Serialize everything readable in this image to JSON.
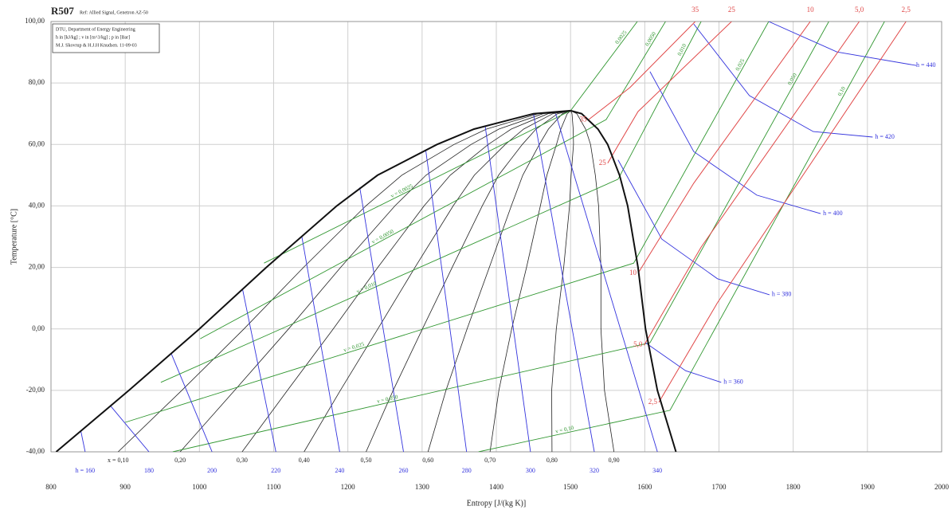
{
  "chart_data": {
    "type": "ts-diagram",
    "title": "R507",
    "subtitle": "Ref: Allied Signal, Genetron AZ-50",
    "info": [
      "DTU, Department of Energy Engineering",
      "h in [kJ/kg] ; v in [m^3/kg] ; p in [Bar]",
      "M.J. Skovrup & H.J.H Knudsen. 11-09-03"
    ],
    "x_label": "Entropy [J/(kg K)]",
    "y_label": "Temperature [°C]",
    "xlim": [
      800,
      2000
    ],
    "xticks": [
      800,
      900,
      1000,
      1100,
      1200,
      1300,
      1400,
      1500,
      1600,
      1700,
      1800,
      1900,
      2000
    ],
    "ylim": [
      -40,
      100
    ],
    "yticks": [
      {
        "value": -40,
        "label": "-40,00"
      },
      {
        "value": -20,
        "label": "-20,00"
      },
      {
        "value": 0,
        "label": "0,00"
      },
      {
        "value": 20,
        "label": "20,00"
      },
      {
        "value": 40,
        "label": "40,00"
      },
      {
        "value": 60,
        "label": "60,00"
      },
      {
        "value": 80,
        "label": "80,00"
      },
      {
        "value": 100,
        "label": "100,00"
      }
    ],
    "grid": true,
    "dome": {
      "color": "#111111",
      "temperatures": [
        -40,
        -20,
        0,
        20,
        40,
        50,
        60,
        65,
        70,
        71
      ],
      "liquid": [
        807,
        905,
        1000,
        1090,
        1185,
        1240,
        1320,
        1370,
        1450,
        1500
      ],
      "vapor": [
        1642,
        1617,
        1601,
        1591,
        1577,
        1566,
        1550,
        1537,
        1515,
        1500
      ]
    },
    "qualities": {
      "color": "#222222",
      "values": [
        {
          "value": 0.1,
          "label": "x = 0,10"
        },
        {
          "value": 0.2,
          "label": "0,20"
        },
        {
          "value": 0.3,
          "label": "0,30"
        },
        {
          "value": 0.4,
          "label": "0,40"
        },
        {
          "value": 0.5,
          "label": "0,50"
        },
        {
          "value": 0.6,
          "label": "0,60"
        },
        {
          "value": 0.7,
          "label": "0,70"
        },
        {
          "value": 0.8,
          "label": "0,80"
        },
        {
          "value": 0.9,
          "label": "0,90"
        }
      ]
    },
    "enthalpy": [
      {
        "name": "h = 160",
        "color": "#3333dd",
        "x": [
          846,
          840
        ],
        "values": [
          -40,
          -33
        ]
      },
      {
        "name": "180",
        "color": "#3333dd",
        "x": [
          932,
          880
        ],
        "values": [
          -40,
          -25
        ]
      },
      {
        "name": "200",
        "color": "#3333dd",
        "x": [
          1017,
          962
        ],
        "values": [
          -40,
          -8
        ]
      },
      {
        "name": "220",
        "color": "#3333dd",
        "x": [
          1103,
          1058
        ],
        "values": [
          -40,
          13
        ]
      },
      {
        "name": "240",
        "color": "#3333dd",
        "x": [
          1189,
          1138
        ],
        "values": [
          -40,
          30
        ]
      },
      {
        "name": "260",
        "color": "#3333dd",
        "x": [
          1275,
          1216
        ],
        "values": [
          -40,
          46
        ]
      },
      {
        "name": "280",
        "color": "#3333dd",
        "x": [
          1360,
          1305
        ],
        "values": [
          -40,
          58
        ]
      },
      {
        "name": "300",
        "color": "#3333dd",
        "x": [
          1446,
          1385
        ],
        "values": [
          -40,
          66
        ]
      },
      {
        "name": "320",
        "color": "#3333dd",
        "x": [
          1532,
          1450
        ],
        "values": [
          -40,
          70
        ]
      },
      {
        "name": "340",
        "color": "#3333dd",
        "x": [
          1617,
          1480
        ],
        "values": [
          -40,
          70
        ]
      },
      {
        "name": "h = 360",
        "color": "#3333dd",
        "x": [
          1601,
          1655,
          1703
        ],
        "values": [
          -4.5,
          -13.6,
          -17.4
        ]
      },
      {
        "name": "h = 380",
        "color": "#3333dd",
        "x": [
          1564,
          1623,
          1698,
          1768
        ],
        "values": [
          55,
          29.2,
          16.3,
          11.1
        ]
      },
      {
        "name": "h = 400",
        "color": "#3333dd",
        "x": [
          1607,
          1666,
          1751,
          1837
        ],
        "values": [
          83.7,
          57.7,
          43.5,
          37.5
        ]
      },
      {
        "name": "h = 420",
        "color": "#3333dd",
        "x": [
          1666,
          1741,
          1827,
          1907
        ],
        "values": [
          99.2,
          75.9,
          64.2,
          62.4
        ]
      },
      {
        "name": "h = 440",
        "color": "#3333dd",
        "x": [
          1767,
          1859,
          1966
        ],
        "values": [
          100,
          90.1,
          85.7
        ]
      }
    ],
    "isobars": [
      {
        "name": "35",
        "color": "#e04848",
        "x": [
          1524,
          1580,
          1668
        ],
        "values": [
          68,
          78.5,
          100
        ]
      },
      {
        "name": "25",
        "color": "#e04848",
        "x": [
          1550,
          1591,
          1717
        ],
        "values": [
          53.9,
          70.7,
          100
        ]
      },
      {
        "name": "10",
        "color": "#e04848",
        "x": [
          1591,
          1666,
          1823
        ],
        "values": [
          18.1,
          47.4,
          100
        ]
      },
      {
        "name": "5,0",
        "color": "#e04848",
        "x": [
          1599,
          1676,
          1889
        ],
        "values": [
          -5.3,
          26.6,
          100
        ]
      },
      {
        "name": "2,5",
        "color": "#e04848",
        "x": [
          1619,
          1698,
          1952
        ],
        "values": [
          -23.9,
          8.5,
          100
        ]
      }
    ],
    "isochores": [
      {
        "name": "v = 0,0025",
        "top_label": "0,0025",
        "color": "#2f962f",
        "x": [
          1087,
          1500,
          1590
        ],
        "values": [
          21.4,
          71,
          100
        ]
      },
      {
        "name": "v = 0,0050",
        "top_label": "0,0050",
        "color": "#2f962f",
        "x": [
          1001,
          1548,
          1628
        ],
        "values": [
          -3.2,
          68.1,
          100
        ]
      },
      {
        "name": "v = 0,010",
        "top_label": "0,010",
        "color": "#2f962f",
        "x": [
          948,
          1564,
          1676
        ],
        "values": [
          -17.4,
          48.7,
          100
        ]
      },
      {
        "name": "v = 0,025",
        "top_label": "0,025",
        "color": "#2f962f",
        "x": [
          900,
          1585,
          1767
        ],
        "values": [
          -30.4,
          21.4,
          100
        ]
      },
      {
        "name": "v = 0,050",
        "top_label": "0,050",
        "color": "#2f962f",
        "x": [
          964,
          1607,
          1848
        ],
        "values": [
          -40,
          -4.5,
          100
        ]
      },
      {
        "name": "v = 0,10",
        "top_label": "0,10",
        "color": "#2f962f",
        "x": [
          1376,
          1634,
          1923
        ],
        "values": [
          -40,
          -26.5,
          100
        ]
      }
    ]
  }
}
